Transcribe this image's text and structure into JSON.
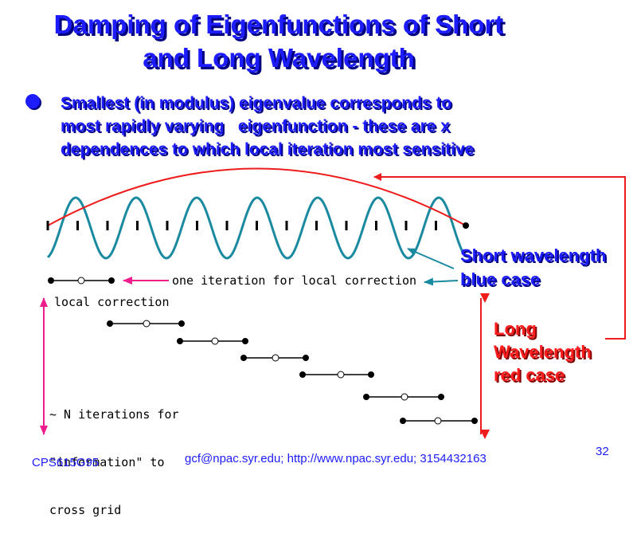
{
  "slide": {
    "title_line1": "Damping of Eigenfunctions of Short",
    "title_line2": "and Long Wavelength",
    "bullet_line1": "Smallest (in modulus) eigenvalue corresponds to",
    "bullet_line2": "most rapidly varying   eigenfunction - these are x",
    "bullet_line3": "dependences to which local iteration most sensitive"
  },
  "figure": {
    "one_iteration_label": "one iteration for local correction",
    "local_correction_label": "local correction",
    "n_iterations_line1": "~ N iterations for",
    "n_iterations_line2": "\"information\" to",
    "n_iterations_line3": "cross grid",
    "short_wave_line1": "Short wavelength",
    "short_wave_line2": "blue case",
    "long_wave_line1": "Long",
    "long_wave_line2": "Wavelength",
    "long_wave_line3": "red case",
    "colors": {
      "title": "#1c1cff",
      "short_wave": "#1a8aa0",
      "long_wave": "#ee1c1c",
      "pink_arrow": "#ee1c8c"
    }
  },
  "footer": {
    "course": "CPS615G95",
    "contact": "gcf@npac.syr.edu; http://www.npac.syr.edu; 3154432163",
    "page": "32"
  }
}
